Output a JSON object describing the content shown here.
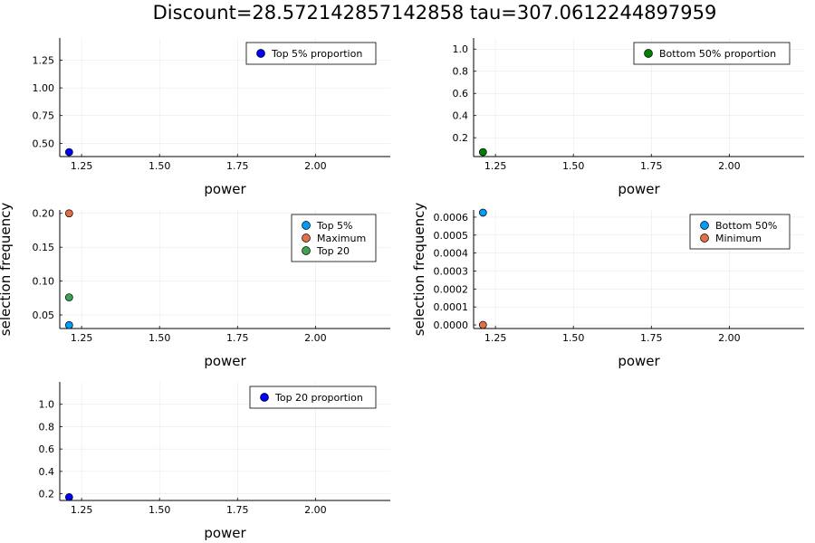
{
  "figure_title": "Discount=28.572142857142858 tau=307.0612244897959",
  "chart_data": [
    {
      "type": "scatter",
      "xlabel": "power",
      "ylabel": "",
      "xlim": [
        1.18,
        2.24
      ],
      "ylim": [
        0.38,
        1.45
      ],
      "xticks": [
        1.25,
        1.5,
        1.75,
        2.0
      ],
      "xtick_labels": [
        "1.25",
        "1.50",
        "1.75",
        "2.00"
      ],
      "yticks": [
        0.5,
        0.75,
        1.0,
        1.25
      ],
      "ytick_labels": [
        "0.50",
        "0.75",
        "1.00",
        "1.25"
      ],
      "grid": true,
      "legend": "top-right",
      "series": [
        {
          "name": "Top 5% proportion",
          "color": "#0000ff",
          "x": [
            1.21
          ],
          "y": [
            0.42
          ]
        }
      ]
    },
    {
      "type": "scatter",
      "xlabel": "power",
      "ylabel": "",
      "xlim": [
        1.18,
        2.24
      ],
      "ylim": [
        0.03,
        1.1
      ],
      "xticks": [
        1.25,
        1.5,
        1.75,
        2.0
      ],
      "xtick_labels": [
        "1.25",
        "1.50",
        "1.75",
        "2.00"
      ],
      "yticks": [
        0.2,
        0.4,
        0.6,
        0.8,
        1.0
      ],
      "ytick_labels": [
        "0.2",
        "0.4",
        "0.6",
        "0.8",
        "1.0"
      ],
      "grid": true,
      "legend": "top-right",
      "series": [
        {
          "name": "Bottom 50% proportion",
          "color": "#008000",
          "x": [
            1.21
          ],
          "y": [
            0.07
          ]
        }
      ]
    },
    {
      "type": "scatter",
      "xlabel": "power",
      "ylabel": "selection frequency",
      "xlim": [
        1.18,
        2.24
      ],
      "ylim": [
        0.03,
        0.205
      ],
      "xticks": [
        1.25,
        1.5,
        1.75,
        2.0
      ],
      "xtick_labels": [
        "1.25",
        "1.50",
        "1.75",
        "2.00"
      ],
      "yticks": [
        0.05,
        0.1,
        0.15,
        0.2
      ],
      "ytick_labels": [
        "0.05",
        "0.10",
        "0.15",
        "0.20"
      ],
      "grid": true,
      "legend": "top-right",
      "series": [
        {
          "name": "Top 5%",
          "color": "#009af9",
          "x": [
            1.21
          ],
          "y": [
            0.035
          ]
        },
        {
          "name": "Maximum",
          "color": "#e26f46",
          "x": [
            1.21
          ],
          "y": [
            0.2
          ]
        },
        {
          "name": "Top 20",
          "color": "#3da44d",
          "x": [
            1.21
          ],
          "y": [
            0.076
          ]
        }
      ]
    },
    {
      "type": "scatter",
      "xlabel": "power",
      "ylabel": "selection frequency",
      "xlim": [
        1.18,
        2.24
      ],
      "ylim": [
        -2e-05,
        0.00064
      ],
      "xticks": [
        1.25,
        1.5,
        1.75,
        2.0
      ],
      "xtick_labels": [
        "1.25",
        "1.50",
        "1.75",
        "2.00"
      ],
      "yticks": [
        0,
        0.0001,
        0.0002,
        0.0003,
        0.0004,
        0.0005,
        0.0006
      ],
      "ytick_labels": [
        "0.0000",
        "0.0001",
        "0.0002",
        "0.0003",
        "0.0004",
        "0.0005",
        "0.0006"
      ],
      "grid": true,
      "legend": "top-right",
      "series": [
        {
          "name": "Bottom 50%",
          "color": "#009af9",
          "x": [
            1.21
          ],
          "y": [
            0.000625
          ]
        },
        {
          "name": "Minimum",
          "color": "#e26f46",
          "x": [
            1.21
          ],
          "y": [
            0.0
          ]
        }
      ]
    },
    {
      "type": "scatter",
      "xlabel": "power",
      "ylabel": "",
      "xlim": [
        1.18,
        2.24
      ],
      "ylim": [
        0.14,
        1.2
      ],
      "xticks": [
        1.25,
        1.5,
        1.75,
        2.0
      ],
      "xtick_labels": [
        "1.25",
        "1.50",
        "1.75",
        "2.00"
      ],
      "yticks": [
        0.2,
        0.4,
        0.6,
        0.8,
        1.0
      ],
      "ytick_labels": [
        "0.2",
        "0.4",
        "0.6",
        "0.8",
        "1.0"
      ],
      "grid": true,
      "legend": "top-right",
      "series": [
        {
          "name": "Top 20 proportion",
          "color": "#0000ff",
          "x": [
            1.21
          ],
          "y": [
            0.17
          ]
        }
      ]
    }
  ]
}
